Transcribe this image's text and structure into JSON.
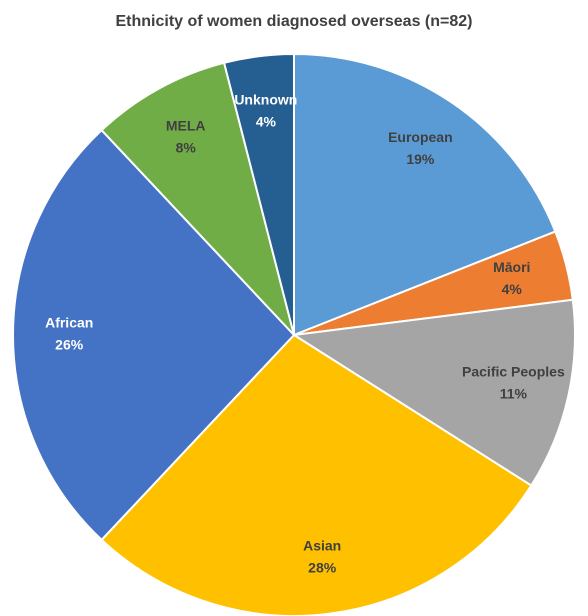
{
  "chart_data": {
    "type": "pie",
    "title": "Ethnicity of women diagnosed overseas (n=82)",
    "categories": [
      "European",
      "Māori",
      "Pacific Peoples",
      "Asian",
      "African",
      "MELA",
      "Unknown"
    ],
    "values": [
      19,
      4,
      11,
      28,
      26,
      8,
      4
    ],
    "value_labels": [
      "19%",
      "4%",
      "11%",
      "28%",
      "26%",
      "8%",
      "4%"
    ],
    "colors": [
      "#5b9bd5",
      "#ed7d31",
      "#a5a5a5",
      "#ffc000",
      "#4472c4",
      "#70ad47",
      "#255e91"
    ]
  }
}
